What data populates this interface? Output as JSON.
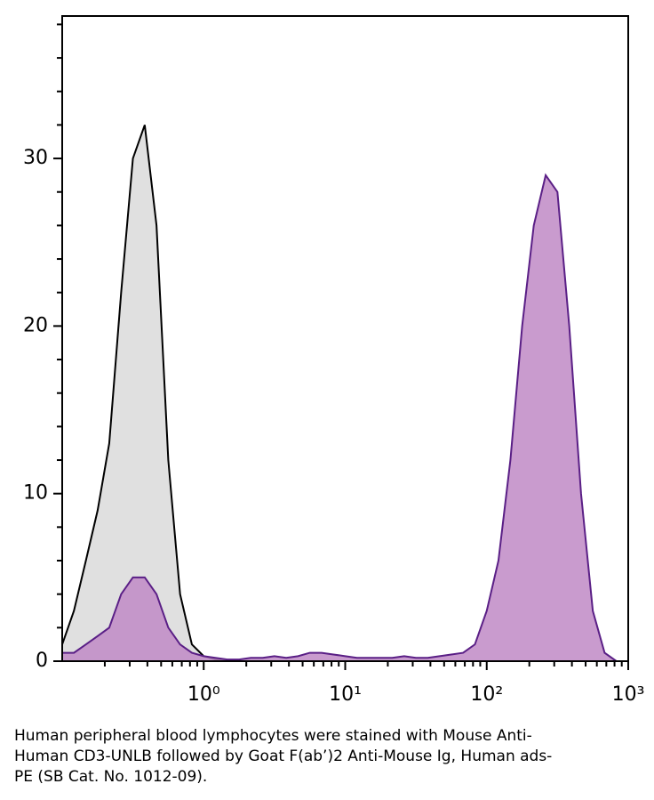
{
  "chart_data": {
    "type": "area",
    "xscale": "log",
    "xlim": [
      0.1,
      1000
    ],
    "ylim": [
      0,
      38.5
    ],
    "xticks": [
      {
        "value": 1,
        "label": "10⁰"
      },
      {
        "value": 10,
        "label": "10¹"
      },
      {
        "value": 100,
        "label": "10²"
      },
      {
        "value": 1000,
        "label": "10³"
      }
    ],
    "yticks": [
      0,
      10,
      20,
      30
    ],
    "xminorticks": [
      0.2,
      0.3,
      0.4,
      0.5,
      0.6,
      0.7,
      0.8,
      0.9,
      2,
      3,
      4,
      5,
      6,
      7,
      8,
      9,
      20,
      30,
      40,
      50,
      60,
      70,
      80,
      90,
      200,
      300,
      400,
      500,
      600,
      700,
      800,
      900
    ],
    "yminorticks": [
      2,
      4,
      6,
      8,
      12,
      14,
      16,
      18,
      22,
      24,
      26,
      28,
      32,
      34,
      36,
      38
    ],
    "x": [
      0.1,
      0.121,
      0.147,
      0.178,
      0.215,
      0.261,
      0.316,
      0.383,
      0.464,
      0.562,
      0.681,
      0.825,
      1,
      1.21,
      1.47,
      1.78,
      2.15,
      2.61,
      3.16,
      3.83,
      4.64,
      5.62,
      6.81,
      8.25,
      10,
      12.1,
      14.7,
      17.8,
      21.5,
      26.1,
      31.6,
      38.3,
      46.4,
      56.2,
      68.1,
      82.5,
      100,
      121,
      147,
      178,
      215,
      261,
      316,
      383,
      464,
      562,
      681,
      825,
      1000
    ],
    "series": [
      {
        "color": "#000000",
        "fill": "#e0e0e0",
        "values": [
          1,
          3,
          6,
          9,
          13,
          22,
          30,
          32,
          26,
          12,
          4,
          1,
          0.3,
          0.1,
          0,
          0,
          0,
          0,
          0,
          0,
          0,
          0,
          0,
          0,
          0,
          0,
          0,
          0,
          0,
          0,
          0,
          0,
          0,
          0,
          0,
          0,
          0,
          0,
          0,
          0,
          0,
          0,
          0,
          0,
          0,
          0,
          0,
          0,
          0
        ]
      },
      {
        "color": "#5a1f86",
        "fill": "#c08ac6",
        "values": [
          0.5,
          0.5,
          1,
          1.5,
          2,
          4,
          5,
          5,
          4,
          2,
          1,
          0.5,
          0.3,
          0.2,
          0.1,
          0.1,
          0.2,
          0.2,
          0.3,
          0.2,
          0.3,
          0.5,
          0.5,
          0.4,
          0.3,
          0.2,
          0.2,
          0.2,
          0.2,
          0.3,
          0.2,
          0.2,
          0.3,
          0.4,
          0.5,
          1,
          3,
          6,
          12,
          20,
          26,
          29,
          28,
          20,
          10,
          3,
          0.5,
          0,
          0
        ]
      }
    ],
    "caption": "Human peripheral blood lymphocytes were stained with Mouse Anti-Human CD3-UNLB followed by Goat F(ab’)2 Anti-Mouse Ig, Human ads-PE (SB Cat. No. 1012-09)."
  }
}
